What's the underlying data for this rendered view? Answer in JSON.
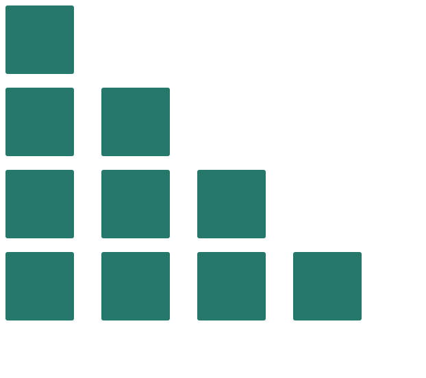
{
  "colors": {
    "tile": "#25786a",
    "background": "#ffffff"
  },
  "rows": [
    {
      "tile_count": 1
    },
    {
      "tile_count": 2
    },
    {
      "tile_count": 3
    },
    {
      "tile_count": 4
    }
  ]
}
